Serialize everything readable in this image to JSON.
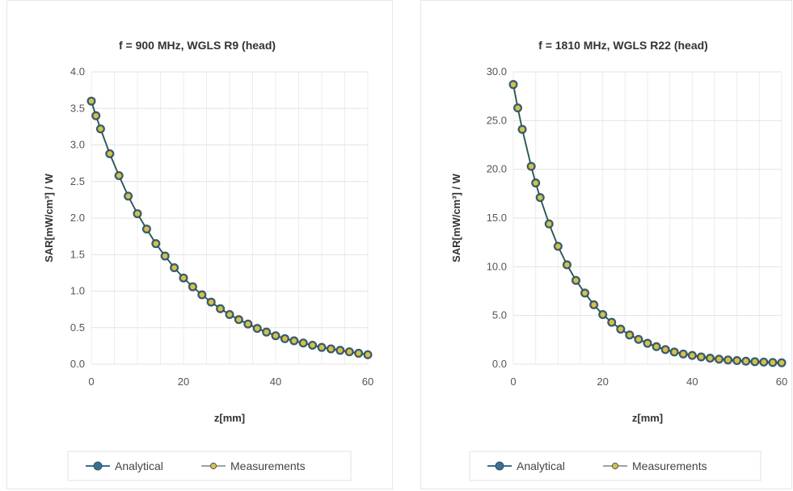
{
  "chart_data": [
    {
      "type": "line",
      "title": "f = 900 MHz, WGLS R9 (head)",
      "xlabel": "z[mm]",
      "ylabel": "SAR[mW/cm³] / W",
      "xlim": [
        0,
        60
      ],
      "ylim": [
        0,
        4.0
      ],
      "xticks": [
        "0",
        "20",
        "40",
        "60"
      ],
      "yticks": [
        "0.0",
        "0.5",
        "1.0",
        "1.5",
        "2.0",
        "2.5",
        "3.0",
        "3.5",
        "4.0"
      ],
      "grid": true,
      "legend_position": "bottom",
      "x": [
        0,
        1,
        2,
        4,
        6,
        8,
        10,
        12,
        14,
        16,
        18,
        20,
        22,
        24,
        26,
        28,
        30,
        32,
        34,
        36,
        38,
        40,
        42,
        44,
        46,
        48,
        50,
        52,
        54,
        56,
        58,
        60
      ],
      "series": [
        {
          "name": "Analytical",
          "color": "#3a6f8f",
          "values": [
            3.6,
            3.4,
            3.22,
            2.88,
            2.58,
            2.3,
            2.06,
            1.85,
            1.65,
            1.48,
            1.32,
            1.18,
            1.06,
            0.95,
            0.85,
            0.76,
            0.68,
            0.61,
            0.55,
            0.49,
            0.44,
            0.39,
            0.35,
            0.32,
            0.29,
            0.26,
            0.23,
            0.21,
            0.19,
            0.17,
            0.15,
            0.13
          ]
        },
        {
          "name": "Measurements",
          "color": "#d2c24a",
          "values": [
            3.6,
            3.4,
            3.22,
            2.88,
            2.58,
            2.3,
            2.06,
            1.85,
            1.65,
            1.48,
            1.32,
            1.18,
            1.06,
            0.95,
            0.85,
            0.76,
            0.68,
            0.61,
            0.55,
            0.49,
            0.44,
            0.39,
            0.35,
            0.32,
            0.29,
            0.26,
            0.23,
            0.21,
            0.19,
            0.17,
            0.15,
            0.13
          ]
        }
      ]
    },
    {
      "type": "line",
      "title": "f = 1810 MHz, WGLS R22 (head)",
      "xlabel": "z[mm]",
      "ylabel": "SAR[mW/cm³] / W",
      "xlim": [
        0,
        60
      ],
      "ylim": [
        0,
        30.0
      ],
      "xticks": [
        "0",
        "20",
        "40",
        "60"
      ],
      "yticks": [
        "0.0",
        "5.0",
        "10.0",
        "15.0",
        "20.0",
        "25.0",
        "30.0"
      ],
      "grid": true,
      "legend_position": "bottom",
      "x": [
        0,
        1,
        2,
        4,
        5,
        6,
        8,
        10,
        12,
        14,
        16,
        18,
        20,
        22,
        24,
        26,
        28,
        30,
        32,
        34,
        36,
        38,
        40,
        42,
        44,
        46,
        48,
        50,
        52,
        54,
        56,
        58,
        60
      ],
      "series": [
        {
          "name": "Analytical",
          "color": "#3a6f8f",
          "values": [
            28.7,
            26.3,
            24.1,
            20.3,
            18.6,
            17.1,
            14.4,
            12.1,
            10.2,
            8.6,
            7.3,
            6.1,
            5.1,
            4.3,
            3.6,
            3.0,
            2.55,
            2.15,
            1.8,
            1.5,
            1.25,
            1.05,
            0.9,
            0.75,
            0.62,
            0.52,
            0.44,
            0.37,
            0.31,
            0.26,
            0.22,
            0.18,
            0.15
          ]
        },
        {
          "name": "Measurements",
          "color": "#d2c24a",
          "values": [
            28.7,
            26.3,
            24.1,
            20.3,
            18.6,
            17.1,
            14.4,
            12.1,
            10.2,
            8.6,
            7.3,
            6.1,
            5.1,
            4.3,
            3.6,
            3.0,
            2.55,
            2.15,
            1.8,
            1.5,
            1.25,
            1.05,
            0.9,
            0.75,
            0.62,
            0.52,
            0.44,
            0.37,
            0.31,
            0.26,
            0.22,
            0.18,
            0.15
          ]
        }
      ]
    }
  ]
}
